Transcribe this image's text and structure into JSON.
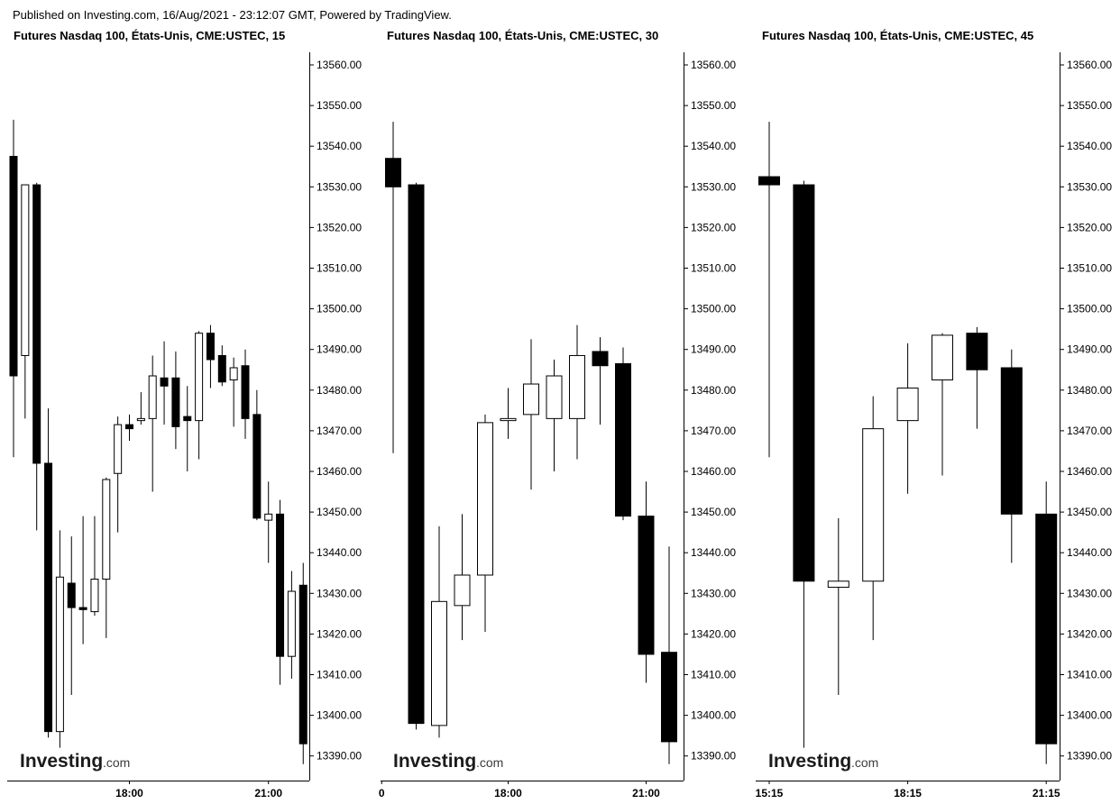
{
  "header": {
    "published": "Published on Investing.com, 16/Aug/2021 - 23:12:07 GMT, Powered by TradingView."
  },
  "logo": {
    "main": "Investing",
    "suffix": ".com"
  },
  "chart_data": [
    {
      "type": "candlestick",
      "title": "Futures Nasdaq 100, États-Unis, CME:USTEC, 15",
      "interval_minutes": 15,
      "ylim": [
        13386,
        13564
      ],
      "y_ticks": [
        13560,
        13550,
        13540,
        13530,
        13520,
        13510,
        13500,
        13490,
        13480,
        13470,
        13460,
        13450,
        13440,
        13430,
        13420,
        13410,
        13400,
        13390
      ],
      "x_ticks": [
        {
          "label": "18:00",
          "index": 10
        },
        {
          "label": "21:00",
          "index": 22
        }
      ],
      "candles": [
        {
          "open": 13537.5,
          "high": 13546.5,
          "low": 13463.5,
          "close": 13483.5
        },
        {
          "open": 13488.5,
          "high": 13530.5,
          "low": 13473.0,
          "close": 13530.5
        },
        {
          "open": 13530.5,
          "high": 13531.0,
          "low": 13445.5,
          "close": 13462.0
        },
        {
          "open": 13462.0,
          "high": 13475.5,
          "low": 13394.5,
          "close": 13396.0
        },
        {
          "open": 13396.0,
          "high": 13445.5,
          "low": 13392.0,
          "close": 13434.0
        },
        {
          "open": 13432.5,
          "high": 13444.0,
          "low": 13405.0,
          "close": 13426.5
        },
        {
          "open": 13426.5,
          "high": 13449.0,
          "low": 13417.5,
          "close": 13426.0
        },
        {
          "open": 13425.5,
          "high": 13449.0,
          "low": 13424.5,
          "close": 13433.5
        },
        {
          "open": 13433.5,
          "high": 13458.5,
          "low": 13419.0,
          "close": 13458.0
        },
        {
          "open": 13459.5,
          "high": 13473.5,
          "low": 13445.0,
          "close": 13471.5
        },
        {
          "open": 13471.5,
          "high": 13474.0,
          "low": 13467.5,
          "close": 13470.5
        },
        {
          "open": 13472.5,
          "high": 13479.5,
          "low": 13471.5,
          "close": 13473.0
        },
        {
          "open": 13473.0,
          "high": 13488.5,
          "low": 13455.0,
          "close": 13483.5
        },
        {
          "open": 13483.0,
          "high": 13492.0,
          "low": 13471.5,
          "close": 13481.0
        },
        {
          "open": 13483.0,
          "high": 13489.5,
          "low": 13465.5,
          "close": 13471.0
        },
        {
          "open": 13473.5,
          "high": 13481.0,
          "low": 13460.0,
          "close": 13472.5
        },
        {
          "open": 13472.5,
          "high": 13494.5,
          "low": 13463.0,
          "close": 13494.0
        },
        {
          "open": 13494.0,
          "high": 13496.0,
          "low": 13480.5,
          "close": 13487.5
        },
        {
          "open": 13488.5,
          "high": 13491.0,
          "low": 13481.0,
          "close": 13482.0
        },
        {
          "open": 13482.5,
          "high": 13488.0,
          "low": 13471.0,
          "close": 13485.5
        },
        {
          "open": 13486.0,
          "high": 13490.0,
          "low": 13468.0,
          "close": 13473.0
        },
        {
          "open": 13474.0,
          "high": 13480.0,
          "low": 13448.0,
          "close": 13448.5
        },
        {
          "open": 13448.0,
          "high": 13457.5,
          "low": 13437.5,
          "close": 13449.5
        },
        {
          "open": 13449.5,
          "high": 13453.0,
          "low": 13407.5,
          "close": 13414.5
        },
        {
          "open": 13414.5,
          "high": 13435.5,
          "low": 13409.0,
          "close": 13430.5
        },
        {
          "open": 13432.0,
          "high": 13437.5,
          "low": 13388.0,
          "close": 13393.0
        }
      ]
    },
    {
      "type": "candlestick",
      "title": "Futures Nasdaq 100, États-Unis, CME:USTEC, 30",
      "interval_minutes": 30,
      "ylim": [
        13386,
        13564
      ],
      "y_ticks": [
        13560,
        13550,
        13540,
        13530,
        13520,
        13510,
        13500,
        13490,
        13480,
        13470,
        13460,
        13450,
        13440,
        13430,
        13420,
        13410,
        13400,
        13390
      ],
      "x_ticks": [
        {
          "label": "0",
          "index": -0.5
        },
        {
          "label": "18:00",
          "index": 5
        },
        {
          "label": "21:00",
          "index": 11
        }
      ],
      "candles": [
        {
          "open": 13537.0,
          "high": 13546.0,
          "low": 13464.5,
          "close": 13530.0
        },
        {
          "open": 13530.5,
          "high": 13531.0,
          "low": 13396.5,
          "close": 13398.0
        },
        {
          "open": 13397.5,
          "high": 13446.5,
          "low": 13394.5,
          "close": 13428.0
        },
        {
          "open": 13427.0,
          "high": 13449.5,
          "low": 13418.5,
          "close": 13434.5
        },
        {
          "open": 13434.5,
          "high": 13474.0,
          "low": 13420.5,
          "close": 13472.0
        },
        {
          "open": 13472.5,
          "high": 13480.5,
          "low": 13468.0,
          "close": 13473.0
        },
        {
          "open": 13474.0,
          "high": 13492.5,
          "low": 13455.5,
          "close": 13481.5
        },
        {
          "open": 13473.0,
          "high": 13487.5,
          "low": 13460.0,
          "close": 13483.5
        },
        {
          "open": 13473.0,
          "high": 13496.0,
          "low": 13463.0,
          "close": 13488.5
        },
        {
          "open": 13489.5,
          "high": 13493.0,
          "low": 13471.5,
          "close": 13486.0
        },
        {
          "open": 13486.5,
          "high": 13490.5,
          "low": 13448.0,
          "close": 13449.0
        },
        {
          "open": 13449.0,
          "high": 13457.5,
          "low": 13408.0,
          "close": 13415.0
        },
        {
          "open": 13415.5,
          "high": 13441.5,
          "low": 13388.0,
          "close": 13393.5
        }
      ]
    },
    {
      "type": "candlestick",
      "title": "Futures Nasdaq 100, États-Unis, CME:USTEC, 45",
      "interval_minutes": 45,
      "ylim": [
        13386,
        13564
      ],
      "y_ticks": [
        13560,
        13550,
        13540,
        13530,
        13520,
        13510,
        13500,
        13490,
        13480,
        13470,
        13460,
        13450,
        13440,
        13430,
        13420,
        13410,
        13400,
        13390
      ],
      "x_ticks": [
        {
          "label": "15:15",
          "index": 0
        },
        {
          "label": "18:15",
          "index": 4
        },
        {
          "label": "21:15",
          "index": 8
        }
      ],
      "candles": [
        {
          "open": 13532.5,
          "high": 13546.0,
          "low": 13463.5,
          "close": 13530.5
        },
        {
          "open": 13530.5,
          "high": 13531.5,
          "low": 13392.0,
          "close": 13433.0
        },
        {
          "open": 13431.5,
          "high": 13448.5,
          "low": 13405.0,
          "close": 13433.0
        },
        {
          "open": 13433.0,
          "high": 13478.5,
          "low": 13418.5,
          "close": 13470.5
        },
        {
          "open": 13472.5,
          "high": 13491.5,
          "low": 13454.5,
          "close": 13480.5
        },
        {
          "open": 13482.5,
          "high": 13494.0,
          "low": 13459.0,
          "close": 13493.5
        },
        {
          "open": 13494.0,
          "high": 13495.5,
          "low": 13470.5,
          "close": 13485.0
        },
        {
          "open": 13485.5,
          "high": 13490.0,
          "low": 13437.5,
          "close": 13449.5
        },
        {
          "open": 13449.5,
          "high": 13457.5,
          "low": 13388.0,
          "close": 13393.0
        }
      ]
    }
  ]
}
